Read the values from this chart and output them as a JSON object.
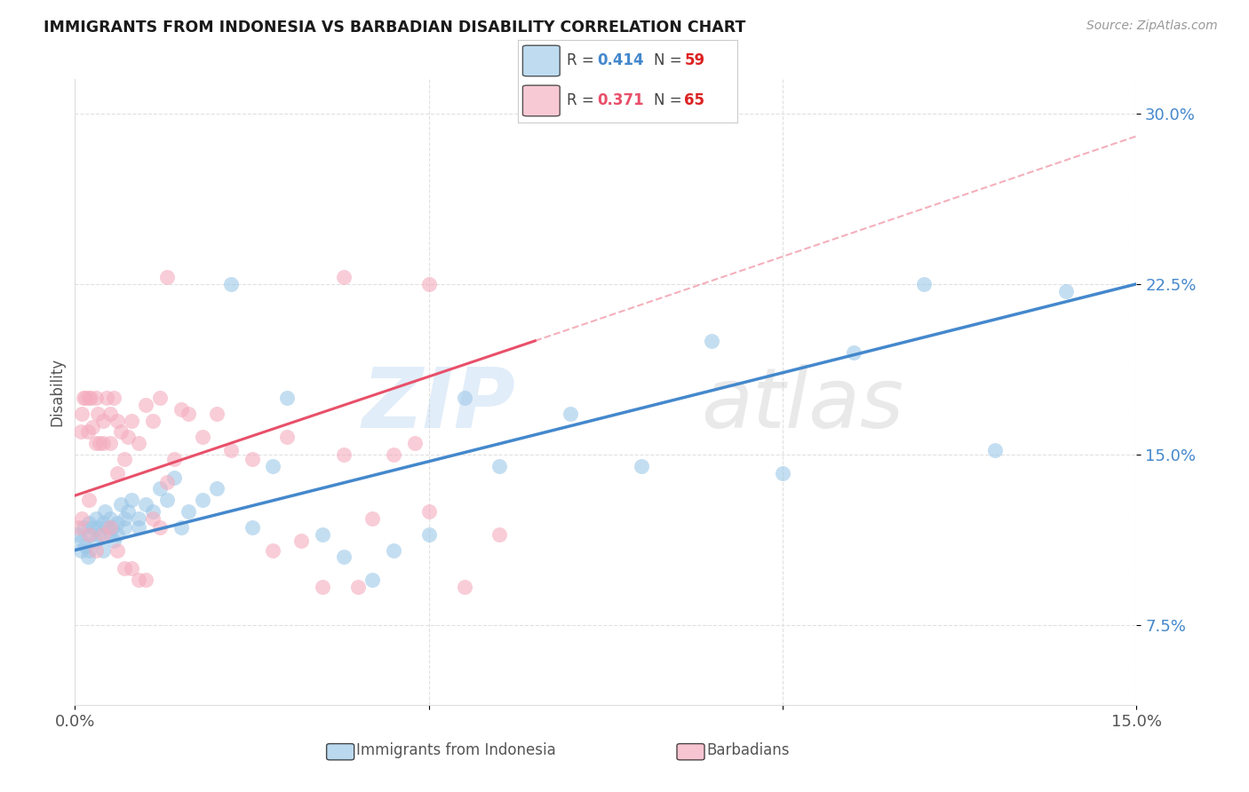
{
  "title": "IMMIGRANTS FROM INDONESIA VS BARBADIAN DISABILITY CORRELATION CHART",
  "source": "Source: ZipAtlas.com",
  "ylabel": "Disability",
  "y_ticks_pct": [
    7.5,
    15.0,
    22.5,
    30.0
  ],
  "y_tick_labels": [
    "7.5%",
    "15.0%",
    "22.5%",
    "30.0%"
  ],
  "x_range": [
    0.0,
    0.15
  ],
  "y_range": [
    0.04,
    0.315
  ],
  "R_blue": "0.414",
  "N_blue": "59",
  "R_pink": "0.371",
  "N_pink": "65",
  "blue_scatter_color": "#9DC8E8",
  "pink_scatter_color": "#F4ACBE",
  "blue_line_color": "#4488CC",
  "pink_line_color": "#E8506A",
  "grid_color": "#DDDDDD",
  "title_color": "#1A1A1A",
  "source_color": "#999999",
  "label_color": "#555555",
  "y_tick_color": "#4488CC",
  "blue_x": [
    0.0005,
    0.0008,
    0.001,
    0.0012,
    0.0015,
    0.0018,
    0.002,
    0.002,
    0.0022,
    0.0025,
    0.003,
    0.003,
    0.0032,
    0.0035,
    0.004,
    0.004,
    0.0042,
    0.0045,
    0.005,
    0.005,
    0.0052,
    0.0055,
    0.006,
    0.006,
    0.0065,
    0.007,
    0.007,
    0.0075,
    0.008,
    0.009,
    0.009,
    0.01,
    0.011,
    0.012,
    0.013,
    0.014,
    0.015,
    0.016,
    0.018,
    0.02,
    0.022,
    0.025,
    0.028,
    0.03,
    0.035,
    0.038,
    0.042,
    0.045,
    0.05,
    0.055,
    0.06,
    0.07,
    0.08,
    0.09,
    0.1,
    0.11,
    0.12,
    0.13,
    0.14
  ],
  "blue_y": [
    0.115,
    0.108,
    0.112,
    0.118,
    0.11,
    0.105,
    0.12,
    0.108,
    0.115,
    0.118,
    0.112,
    0.122,
    0.118,
    0.115,
    0.12,
    0.108,
    0.125,
    0.118,
    0.115,
    0.122,
    0.118,
    0.112,
    0.12,
    0.115,
    0.128,
    0.118,
    0.122,
    0.125,
    0.13,
    0.118,
    0.122,
    0.128,
    0.125,
    0.135,
    0.13,
    0.14,
    0.118,
    0.125,
    0.13,
    0.135,
    0.225,
    0.118,
    0.145,
    0.175,
    0.115,
    0.105,
    0.095,
    0.108,
    0.115,
    0.175,
    0.145,
    0.168,
    0.145,
    0.2,
    0.142,
    0.195,
    0.225,
    0.152,
    0.222
  ],
  "pink_x": [
    0.0005,
    0.0008,
    0.001,
    0.0012,
    0.0015,
    0.0018,
    0.002,
    0.002,
    0.0022,
    0.0025,
    0.003,
    0.003,
    0.0032,
    0.0035,
    0.004,
    0.004,
    0.0045,
    0.005,
    0.005,
    0.0055,
    0.006,
    0.006,
    0.0065,
    0.007,
    0.0075,
    0.008,
    0.009,
    0.01,
    0.011,
    0.012,
    0.013,
    0.014,
    0.015,
    0.016,
    0.018,
    0.02,
    0.022,
    0.025,
    0.028,
    0.03,
    0.032,
    0.035,
    0.038,
    0.04,
    0.042,
    0.045,
    0.048,
    0.05,
    0.055,
    0.06,
    0.001,
    0.002,
    0.003,
    0.004,
    0.005,
    0.006,
    0.007,
    0.008,
    0.009,
    0.01,
    0.011,
    0.012,
    0.013,
    0.038,
    0.05
  ],
  "pink_y": [
    0.118,
    0.16,
    0.168,
    0.175,
    0.175,
    0.16,
    0.175,
    0.13,
    0.175,
    0.162,
    0.175,
    0.155,
    0.168,
    0.155,
    0.165,
    0.155,
    0.175,
    0.168,
    0.155,
    0.175,
    0.165,
    0.142,
    0.16,
    0.148,
    0.158,
    0.165,
    0.155,
    0.172,
    0.165,
    0.175,
    0.138,
    0.148,
    0.17,
    0.168,
    0.158,
    0.168,
    0.152,
    0.148,
    0.108,
    0.158,
    0.112,
    0.092,
    0.15,
    0.092,
    0.122,
    0.15,
    0.155,
    0.125,
    0.092,
    0.115,
    0.122,
    0.115,
    0.108,
    0.115,
    0.118,
    0.108,
    0.1,
    0.1,
    0.095,
    0.095,
    0.122,
    0.118,
    0.228,
    0.228,
    0.225
  ],
  "blue_line_x0": 0.0,
  "blue_line_x1": 0.15,
  "blue_line_y0": 0.108,
  "blue_line_y1": 0.225,
  "pink_line_solid_x0": 0.0,
  "pink_line_solid_x1": 0.065,
  "pink_line_y0": 0.132,
  "pink_line_y1": 0.2,
  "pink_line_dash_x0": 0.065,
  "pink_line_dash_x1": 0.15,
  "pink_line_dash_y0": 0.2,
  "pink_line_dash_y1": 0.29
}
